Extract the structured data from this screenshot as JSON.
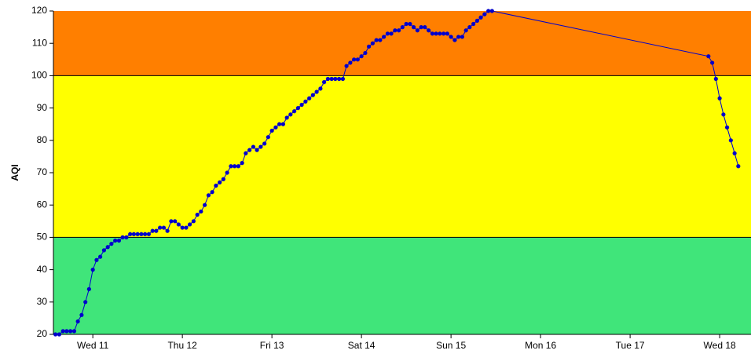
{
  "chart_data": {
    "type": "line",
    "ylabel": "AQI",
    "ylim": [
      20,
      120
    ],
    "yticks": [
      20,
      30,
      40,
      50,
      60,
      70,
      80,
      90,
      100,
      110,
      120
    ],
    "xlim": [
      10.56,
      18.35
    ],
    "xticks": [
      {
        "value": 11,
        "label": "Wed 11"
      },
      {
        "value": 12,
        "label": "Thu 12"
      },
      {
        "value": 13,
        "label": "Fri 13"
      },
      {
        "value": 14,
        "label": "Sat 14"
      },
      {
        "value": 15,
        "label": "Sun 15"
      },
      {
        "value": 16,
        "label": "Mon 16"
      },
      {
        "value": 17,
        "label": "Tue 17"
      },
      {
        "value": 18,
        "label": "Wed 18"
      }
    ],
    "bands": [
      {
        "min": 0,
        "max": 50,
        "color": "#40e57a"
      },
      {
        "min": 50,
        "max": 100,
        "color": "#ffff00"
      },
      {
        "min": 100,
        "max": 150,
        "color": "#ff7f00"
      }
    ],
    "series": [
      {
        "color": "#0000cc",
        "x": [
          10.583,
          10.625,
          10.667,
          10.708,
          10.75,
          10.792,
          10.833,
          10.875,
          10.917,
          10.958,
          11,
          11.042,
          11.083,
          11.125,
          11.167,
          11.208,
          11.25,
          11.292,
          11.333,
          11.375,
          11.417,
          11.458,
          11.5,
          11.542,
          11.583,
          11.625,
          11.667,
          11.708,
          11.75,
          11.792,
          11.833,
          11.875,
          11.917,
          11.958,
          12,
          12.042,
          12.083,
          12.125,
          12.167,
          12.208,
          12.25,
          12.292,
          12.333,
          12.375,
          12.417,
          12.458,
          12.5,
          12.542,
          12.583,
          12.625,
          12.667,
          12.708,
          12.75,
          12.792,
          12.833,
          12.875,
          12.917,
          12.958,
          13,
          13.042,
          13.083,
          13.125,
          13.167,
          13.208,
          13.25,
          13.292,
          13.333,
          13.375,
          13.417,
          13.458,
          13.5,
          13.542,
          13.583,
          13.625,
          13.667,
          13.708,
          13.75,
          13.792,
          13.833,
          13.875,
          13.917,
          13.958,
          14,
          14.042,
          14.083,
          14.125,
          14.167,
          14.208,
          14.25,
          14.292,
          14.333,
          14.375,
          14.417,
          14.458,
          14.5,
          14.542,
          14.583,
          14.625,
          14.667,
          14.708,
          14.75,
          14.792,
          14.833,
          14.875,
          14.917,
          14.958,
          15,
          15.042,
          15.083,
          15.125,
          15.167,
          15.208,
          15.25,
          15.292,
          15.333,
          15.375,
          15.417,
          15.458,
          17.875,
          17.917,
          17.958,
          18,
          18.042,
          18.083,
          18.125,
          18.167,
          18.208
        ],
        "values": [
          20,
          20,
          21,
          21,
          21,
          21,
          24,
          26,
          30,
          34,
          40,
          43,
          44,
          46,
          47,
          48,
          49,
          49,
          50,
          50,
          51,
          51,
          51,
          51,
          51,
          51,
          52,
          52,
          53,
          53,
          52,
          55,
          55,
          54,
          53,
          53,
          54,
          55,
          57,
          58,
          60,
          63,
          64,
          66,
          67,
          68,
          70,
          72,
          72,
          72,
          73,
          76,
          77,
          78,
          77,
          78,
          79,
          81,
          83,
          84,
          85,
          85,
          87,
          88,
          89,
          90,
          91,
          92,
          93,
          94,
          95,
          96,
          98,
          99,
          99,
          99,
          99,
          99,
          103,
          104,
          105,
          105,
          106,
          107,
          109,
          110,
          111,
          111,
          112,
          113,
          113,
          114,
          114,
          115,
          116,
          116,
          115,
          114,
          115,
          115,
          114,
          113,
          113,
          113,
          113,
          113,
          112,
          111,
          112,
          112,
          114,
          115,
          116,
          117,
          118,
          119,
          120,
          120,
          106,
          104,
          99,
          93,
          88,
          84,
          80,
          76,
          72
        ]
      }
    ]
  }
}
